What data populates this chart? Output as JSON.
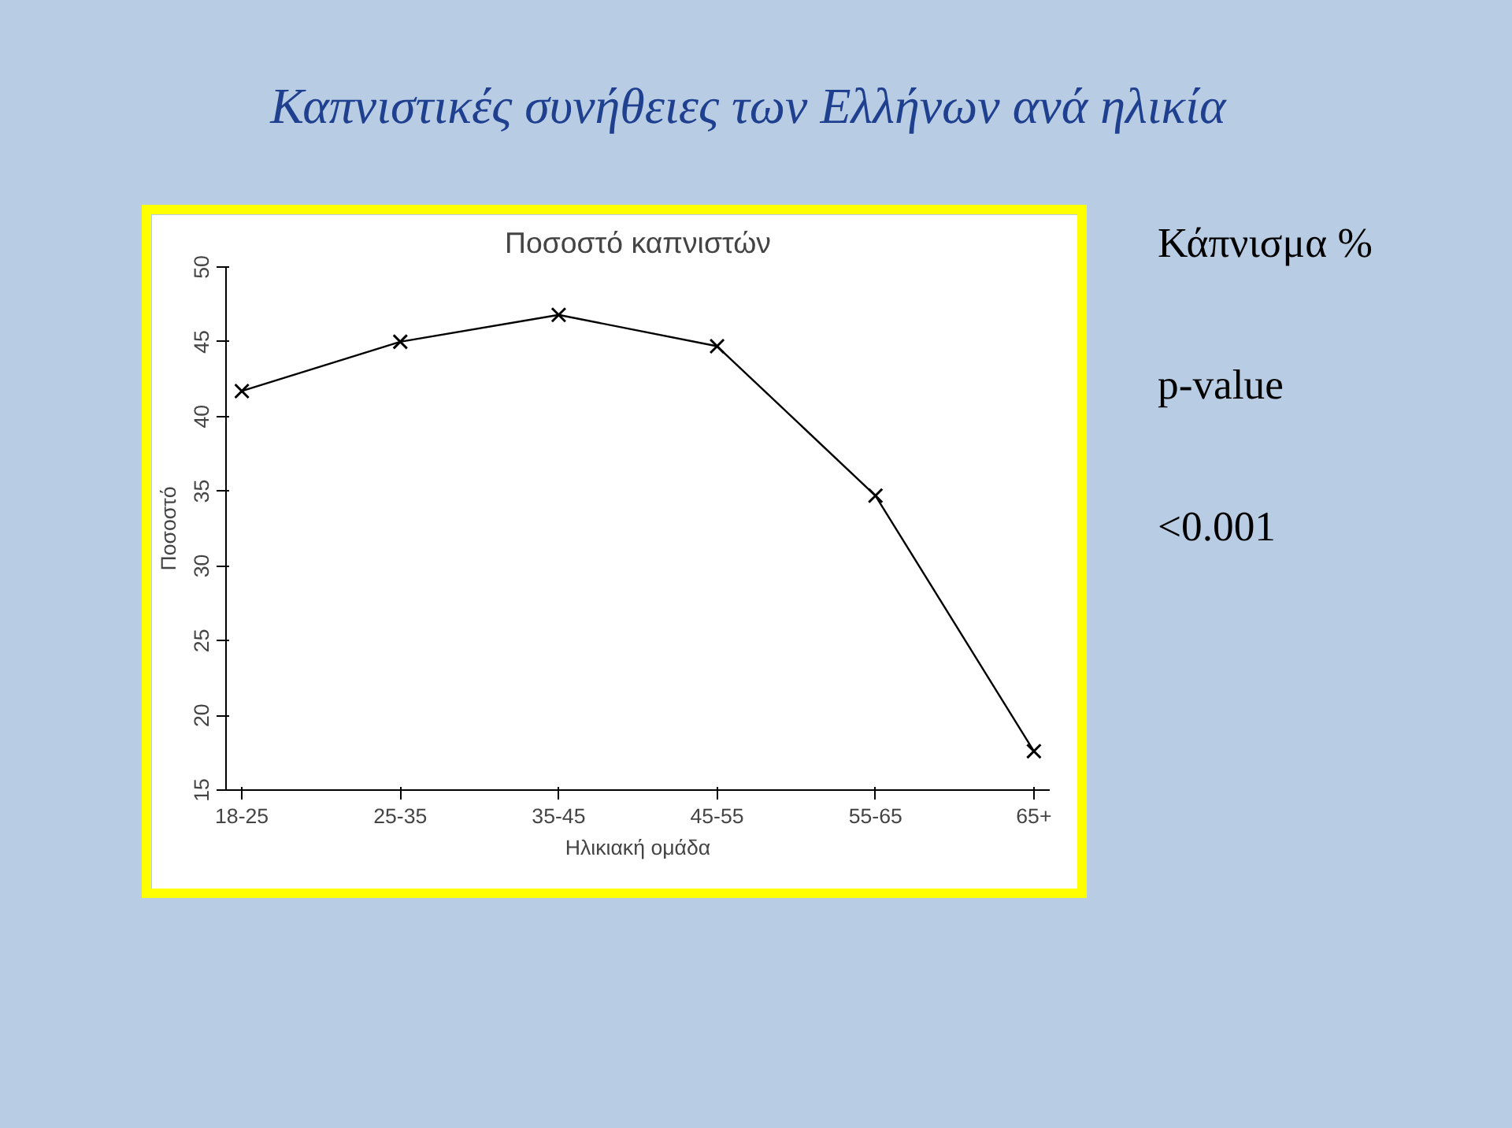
{
  "chart_data": {
    "type": "line",
    "title": "Καπνιστικές συνήθειες των Ελλήνων ανά ηλικία",
    "subtitle": "Ποσοστό καπνιστών",
    "xlabel": "Ηλικιακή ομάδα",
    "ylabel": "Ποσοστό",
    "categories": [
      "18-25",
      "25-35",
      "35-45",
      "45-55",
      "55-65",
      "65+"
    ],
    "series": [
      {
        "color": "#000000",
        "values": [
          41.7,
          45.0,
          46.8,
          44.7,
          34.7,
          17.6
        ]
      }
    ],
    "ylim": [
      15,
      50
    ],
    "yticks": [
      15,
      20,
      25,
      30,
      35,
      40,
      45,
      50
    ],
    "grid": false,
    "marker": "cross",
    "line_style": "solid",
    "annotations": [
      "Κάπνισμα %",
      "p-value",
      "<0.001"
    ]
  }
}
